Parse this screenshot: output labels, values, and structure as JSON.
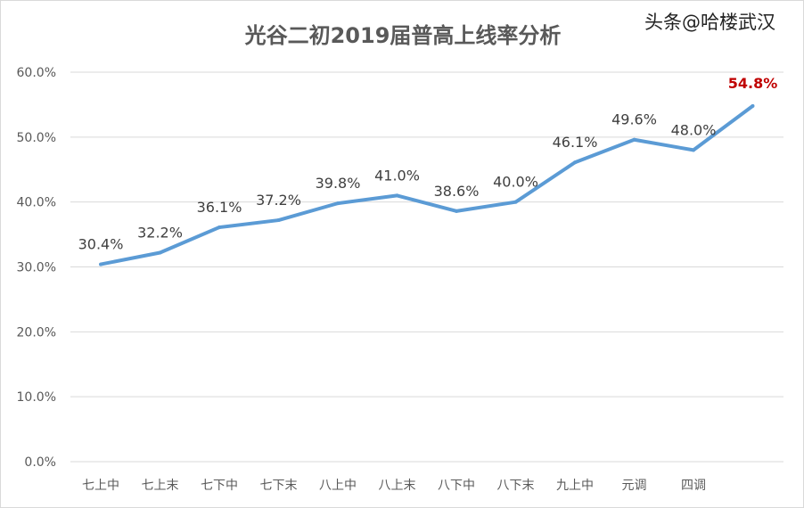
{
  "chart_data": {
    "type": "line",
    "title": "光谷二初2019届普高上线率分析",
    "categories": [
      "七上中",
      "七上末",
      "七下中",
      "七下末",
      "八上中",
      "八上末",
      "八下中",
      "八下末",
      "九上中",
      "元调",
      "四调",
      ""
    ],
    "values": [
      30.4,
      32.2,
      36.1,
      37.2,
      39.8,
      41.0,
      38.6,
      40.0,
      46.1,
      49.6,
      48.0,
      54.8
    ],
    "data_labels": [
      "30.4%",
      "32.2%",
      "36.1%",
      "37.2%",
      "39.8%",
      "41.0%",
      "38.6%",
      "40.0%",
      "46.1%",
      "49.6%",
      "48.0%",
      "54.8%"
    ],
    "yticks": [
      "0.0%",
      "10.0%",
      "20.0%",
      "30.0%",
      "40.0%",
      "50.0%",
      "60.0%"
    ],
    "ylim": [
      0,
      60
    ],
    "grid": true,
    "line_color": "#5b9bd5",
    "highlight_color": "#c00000"
  },
  "watermark": "头条@哈楼武汉"
}
